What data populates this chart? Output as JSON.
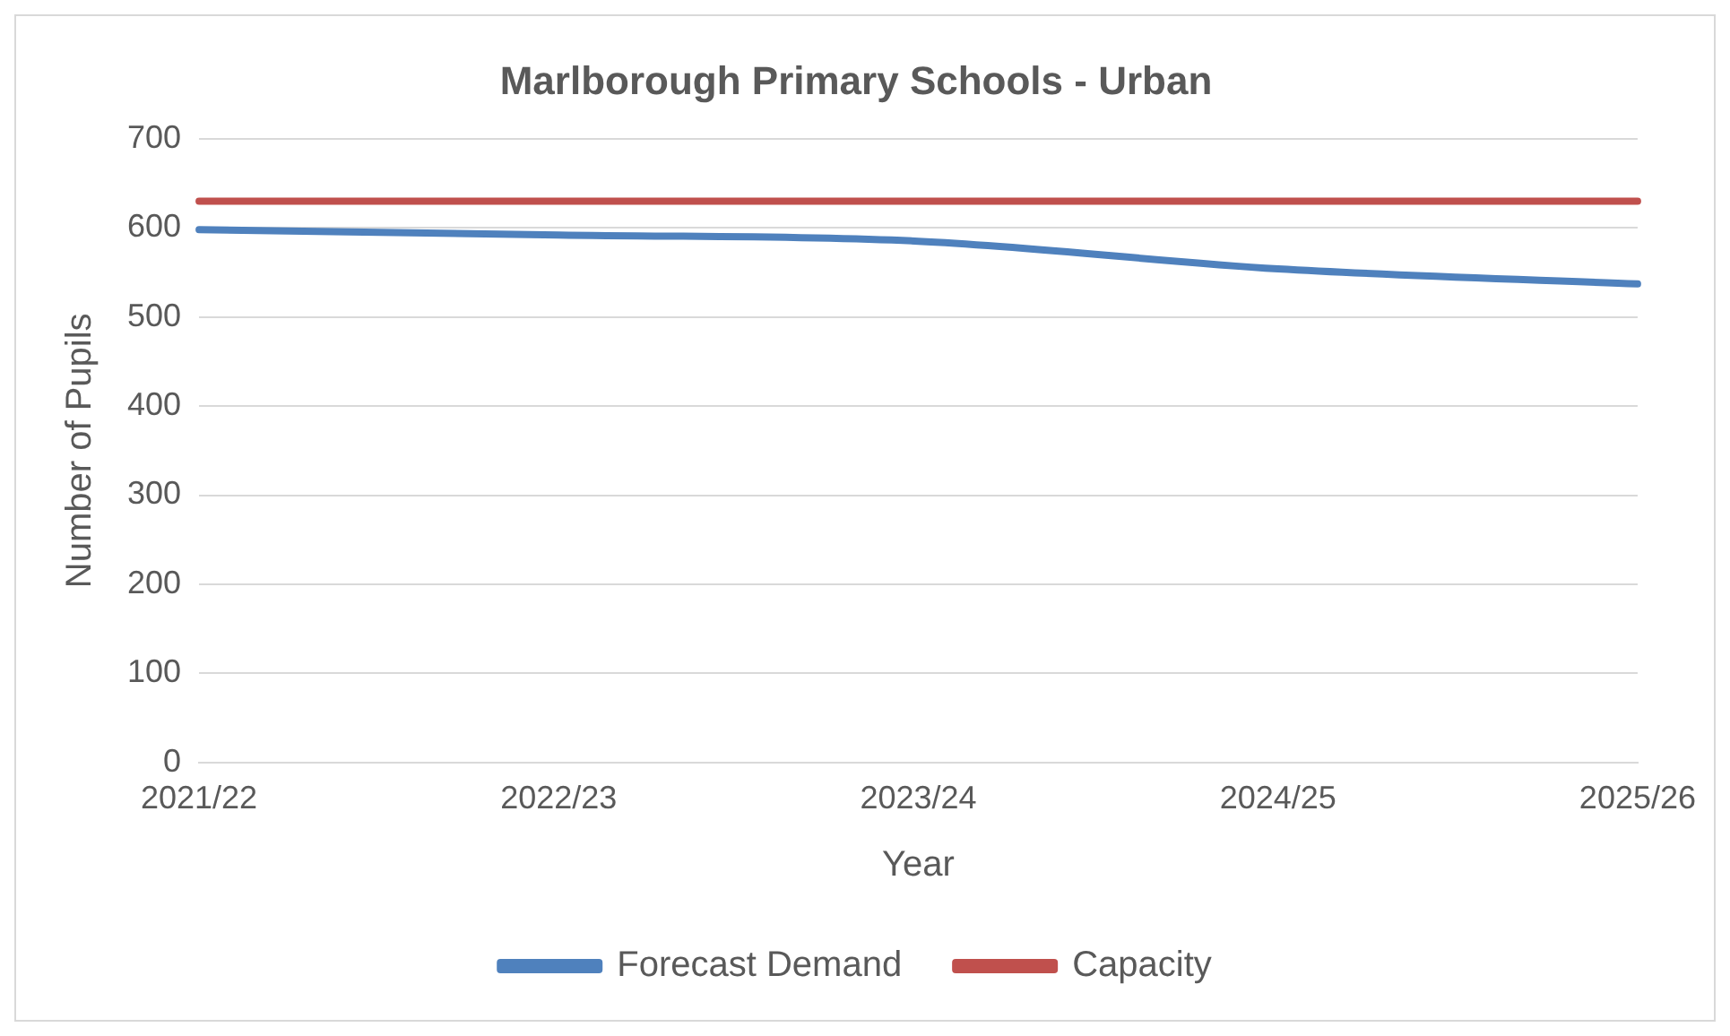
{
  "chart_data": {
    "type": "line",
    "title": "Marlborough Primary Schools - Urban",
    "xlabel": "Year",
    "ylabel": "Number of Pupils",
    "categories": [
      "2021/22",
      "2022/23",
      "2023/24",
      "2024/25",
      "2025/26"
    ],
    "series": [
      {
        "name": "Forecast Demand",
        "color": "#4f81bd",
        "values": [
          598,
          592,
          585,
          554,
          537
        ]
      },
      {
        "name": "Capacity",
        "color": "#c0504d",
        "values": [
          630,
          630,
          630,
          630,
          630
        ]
      }
    ],
    "ylim": [
      0,
      700
    ],
    "yticks": [
      0,
      100,
      200,
      300,
      400,
      500,
      600,
      700
    ],
    "grid": "y",
    "legend": "bottom",
    "marker": "none"
  }
}
